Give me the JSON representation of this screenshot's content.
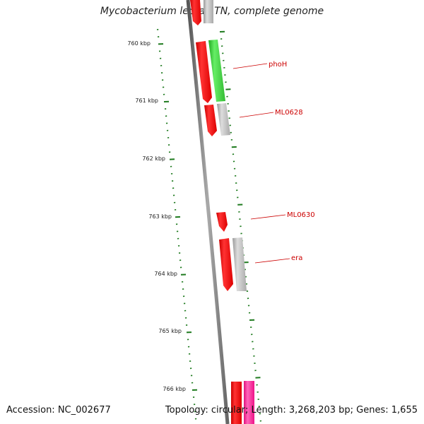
{
  "title": "Mycobacterium leprae TN, complete genome",
  "accession_text": "Accession: NC_002677",
  "summary_text": "Topology: circular; Length: 3,268,203 bp; Genes: 1,655",
  "colors": {
    "backbone": "#808080",
    "tick": "#1e7a1e",
    "gene_label": "#cc0000",
    "forward_red": "#ff0000",
    "green": "#33cc33",
    "grey": "#b8b8b8",
    "magenta": "#ff1493"
  },
  "kbp_labels": [
    "760 kbp",
    "761 kbp",
    "762 kbp",
    "763 kbp",
    "764 kbp",
    "765 kbp",
    "766 kbp"
  ],
  "gene_labels": [
    "phoH",
    "ML0628",
    "ML0630",
    "era"
  ]
}
